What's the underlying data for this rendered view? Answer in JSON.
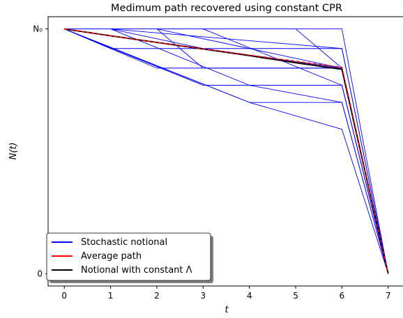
{
  "chart_data": {
    "type": "line",
    "title": "Medimum path recovered using constant CPR",
    "xlabel": "t",
    "ylabel": "N(t)",
    "xlim": [
      -0.35,
      7.35
    ],
    "ylim": [
      -0.05,
      1.05
    ],
    "xticks": [
      0,
      1,
      2,
      3,
      4,
      5,
      6,
      7
    ],
    "xtick_labels": [
      "0",
      "1",
      "2",
      "3",
      "4",
      "5",
      "6",
      "7"
    ],
    "yticks": [
      0,
      1
    ],
    "ytick_labels": [
      "0",
      "N₀"
    ],
    "grid": false,
    "legend_position": "lower-left",
    "legend": [
      {
        "label": "Stochastic notional",
        "color": "#0000ff",
        "dashed": false
      },
      {
        "label": "Average path",
        "color": "#ff0000",
        "dashed": false
      },
      {
        "label": "Notional with constant Λ",
        "color": "#000000",
        "dashed": false
      }
    ],
    "stochastic_paths": [
      {
        "x": [
          0,
          6,
          7
        ],
        "y": [
          1.0,
          1.0,
          0.0
        ]
      },
      {
        "x": [
          0,
          1,
          6,
          7
        ],
        "y": [
          1.0,
          1.0,
          0.92,
          0.0
        ]
      },
      {
        "x": [
          0,
          2,
          6,
          7
        ],
        "y": [
          1.0,
          1.0,
          0.84,
          0.0
        ]
      },
      {
        "x": [
          0,
          3,
          6,
          7
        ],
        "y": [
          1.0,
          1.0,
          0.77,
          0.0
        ]
      },
      {
        "x": [
          0,
          5,
          6,
          7
        ],
        "y": [
          1.0,
          1.0,
          0.84,
          0.0
        ]
      },
      {
        "x": [
          0,
          1,
          3,
          6,
          7
        ],
        "y": [
          1.0,
          1.0,
          0.92,
          0.84,
          0.0
        ]
      },
      {
        "x": [
          0,
          1,
          4,
          6,
          7
        ],
        "y": [
          1.0,
          1.0,
          0.77,
          0.77,
          0.0
        ]
      },
      {
        "x": [
          0,
          2,
          3,
          6,
          7
        ],
        "y": [
          1.0,
          1.0,
          0.84,
          0.84,
          0.0
        ]
      },
      {
        "x": [
          0,
          1,
          6,
          7
        ],
        "y": [
          1.0,
          0.92,
          0.92,
          0.0
        ]
      },
      {
        "x": [
          0,
          2,
          6,
          7
        ],
        "y": [
          1.0,
          0.84,
          0.84,
          0.0
        ]
      },
      {
        "x": [
          0,
          3,
          6,
          7
        ],
        "y": [
          1.0,
          0.77,
          0.77,
          0.0
        ]
      },
      {
        "x": [
          0,
          3,
          4,
          6,
          7
        ],
        "y": [
          1.0,
          0.77,
          0.77,
          0.7,
          0.0
        ]
      },
      {
        "x": [
          0,
          4,
          6,
          7
        ],
        "y": [
          1.0,
          0.7,
          0.7,
          0.0
        ]
      },
      {
        "x": [
          0,
          4,
          6,
          7
        ],
        "y": [
          1.0,
          0.7,
          0.59,
          0.0
        ]
      }
    ],
    "average_path": {
      "x": [
        0,
        1,
        2,
        3,
        4,
        5,
        6,
        7
      ],
      "y": [
        1.0,
        0.972,
        0.945,
        0.919,
        0.893,
        0.868,
        0.843,
        0.0
      ]
    },
    "constant_lambda_path": {
      "x": [
        0,
        1,
        2,
        3,
        4,
        5,
        6,
        7
      ],
      "y": [
        1.0,
        0.972,
        0.945,
        0.918,
        0.891,
        0.862,
        0.835,
        0.0
      ]
    }
  }
}
